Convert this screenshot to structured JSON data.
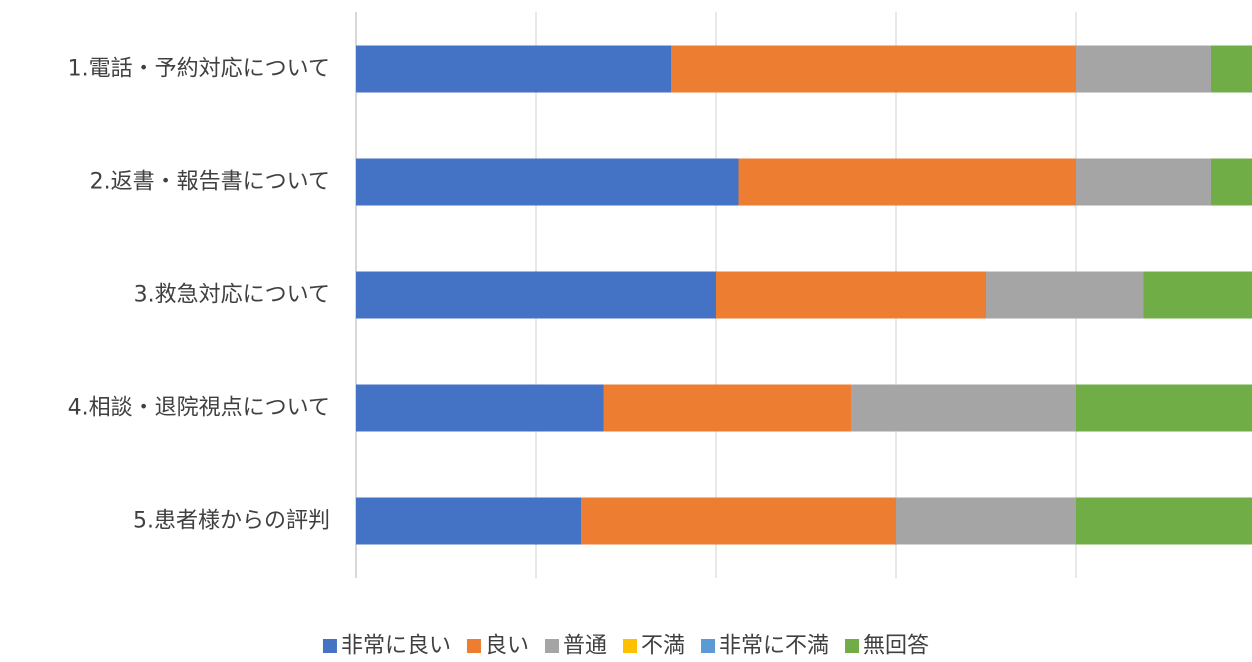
{
  "chart_data": {
    "type": "bar",
    "orientation": "horizontal",
    "stacked": true,
    "categories": [
      "1.電話・予約対応について",
      "2.返書・報告書について",
      "3.救急対応について",
      "4.相談・退院視点について",
      "5.患者様からの評判"
    ],
    "series": [
      {
        "name": "非常に良い",
        "color": "#4472C4",
        "values": [
          14,
          17,
          16,
          11,
          10
        ]
      },
      {
        "name": "良い",
        "color": "#ED7D31",
        "values": [
          18,
          15,
          12,
          11,
          14
        ]
      },
      {
        "name": "普通",
        "color": "#A5A5A5",
        "values": [
          6,
          6,
          7,
          10,
          8
        ]
      },
      {
        "name": "不満",
        "color": "#FFC000",
        "values": [
          0,
          0,
          0,
          0,
          0
        ]
      },
      {
        "name": "非常に不満",
        "color": "#5B9BD5",
        "values": [
          0,
          0,
          0,
          0,
          0
        ]
      },
      {
        "name": "無回答",
        "color": "#70AD47",
        "values": [
          2,
          2,
          5,
          8,
          8
        ]
      }
    ],
    "xlim": [
      0,
      40
    ],
    "x_gridline_step": 8,
    "x_tick_labels_shown": false,
    "grid": true,
    "legend_position": "bottom",
    "title": "",
    "xlabel": "",
    "ylabel": ""
  }
}
